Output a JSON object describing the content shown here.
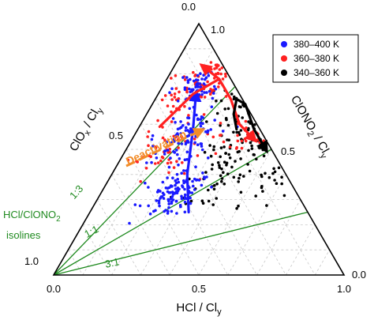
{
  "chart_data": {
    "type": "scatter",
    "subtype": "ternary",
    "components": [
      "HCl",
      "ClONO2",
      "ClOx"
    ],
    "axes": {
      "bottom": {
        "title_main": "HCl / Cl",
        "title_sub": "y",
        "ticks": [
          "0.0",
          "0.5",
          "1.0"
        ]
      },
      "left": {
        "title_main": "ClO",
        "title_x": "x",
        "title_rest": " / Cl",
        "title_sub": "y",
        "ticks": [
          "1.0",
          "0.5",
          "0.0"
        ]
      },
      "right": {
        "title_main": "ClONO",
        "title_2": "2",
        "title_rest": " / Cl",
        "title_sub": "y",
        "ticks": [
          "1.0",
          "0.5",
          "0.0"
        ]
      }
    },
    "grid": true,
    "legend": {
      "position": "top-right",
      "entries": [
        {
          "label": "380–400 K",
          "color": "#1a1aff"
        },
        {
          "label": "360–380 K",
          "color": "#ff2020"
        },
        {
          "label": "340–360 K",
          "color": "#000000"
        }
      ]
    },
    "isolines": {
      "title_main": "HCl/ClONO",
      "title_2": "2",
      "title_line2": "isolines",
      "color": "#1f8a1f",
      "lines": [
        {
          "label": "1:3",
          "hcl": 0.25,
          "clono2": 0.75
        },
        {
          "label": "1:1",
          "hcl": 0.5,
          "clono2": 0.5
        },
        {
          "label": "3:1",
          "hcl": 0.75,
          "clono2": 0.25
        }
      ]
    },
    "annotation": {
      "text": "Deactivation",
      "color": "#f28c28"
    },
    "series": [
      {
        "name": "380–400 K",
        "color": "#1a1aff",
        "clusters": [
          {
            "hcl": 0.26,
            "clono2": 0.32,
            "spread": 0.045,
            "n": 110
          },
          {
            "hcl": 0.18,
            "clono2": 0.55,
            "spread": 0.05,
            "n": 90
          },
          {
            "hcl": 0.12,
            "clono2": 0.74,
            "spread": 0.04,
            "n": 60
          }
        ],
        "trend": [
          {
            "hcl": 0.34,
            "clono2": 0.25
          },
          {
            "hcl": 0.26,
            "clono2": 0.4
          },
          {
            "hcl": 0.19,
            "clono2": 0.58
          },
          {
            "hcl": 0.13,
            "clono2": 0.72
          }
        ]
      },
      {
        "name": "360–380 K",
        "color": "#ff2020",
        "clusters": [
          {
            "hcl": 0.15,
            "clono2": 0.5,
            "spread": 0.06,
            "n": 55
          },
          {
            "hcl": 0.1,
            "clono2": 0.72,
            "spread": 0.05,
            "n": 50
          },
          {
            "hcl": 0.16,
            "clono2": 0.8,
            "spread": 0.035,
            "n": 40
          },
          {
            "hcl": 0.4,
            "clono2": 0.56,
            "spread": 0.05,
            "n": 35
          }
        ],
        "trend": [
          {
            "hcl": 0.07,
            "clono2": 0.59
          },
          {
            "hcl": 0.12,
            "clono2": 0.72
          },
          {
            "hcl": 0.18,
            "clono2": 0.78
          },
          {
            "hcl": 0.26,
            "clono2": 0.7
          },
          {
            "hcl": 0.34,
            "clono2": 0.6
          },
          {
            "hcl": 0.42,
            "clono2": 0.54
          }
        ],
        "trend2": [
          {
            "hcl": 0.18,
            "clono2": 0.78
          },
          {
            "hcl": 0.1,
            "clono2": 0.83
          }
        ]
      },
      {
        "name": "340–360 K",
        "color": "#000000",
        "clusters": [
          {
            "hcl": 0.4,
            "clono2": 0.52,
            "spread": 0.06,
            "n": 90
          },
          {
            "hcl": 0.3,
            "clono2": 0.68,
            "spread": 0.05,
            "n": 45
          },
          {
            "hcl": 0.38,
            "clono2": 0.36,
            "spread": 0.06,
            "n": 30
          },
          {
            "hcl": 0.55,
            "clono2": 0.38,
            "spread": 0.05,
            "n": 25
          }
        ],
        "trend": [
          {
            "hcl": 0.34,
            "clono2": 0.58
          },
          {
            "hcl": 0.3,
            "clono2": 0.64
          },
          {
            "hcl": 0.28,
            "clono2": 0.7
          },
          {
            "hcl": 0.32,
            "clono2": 0.68
          },
          {
            "hcl": 0.4,
            "clono2": 0.58
          },
          {
            "hcl": 0.48,
            "clono2": 0.5
          }
        ]
      }
    ]
  }
}
